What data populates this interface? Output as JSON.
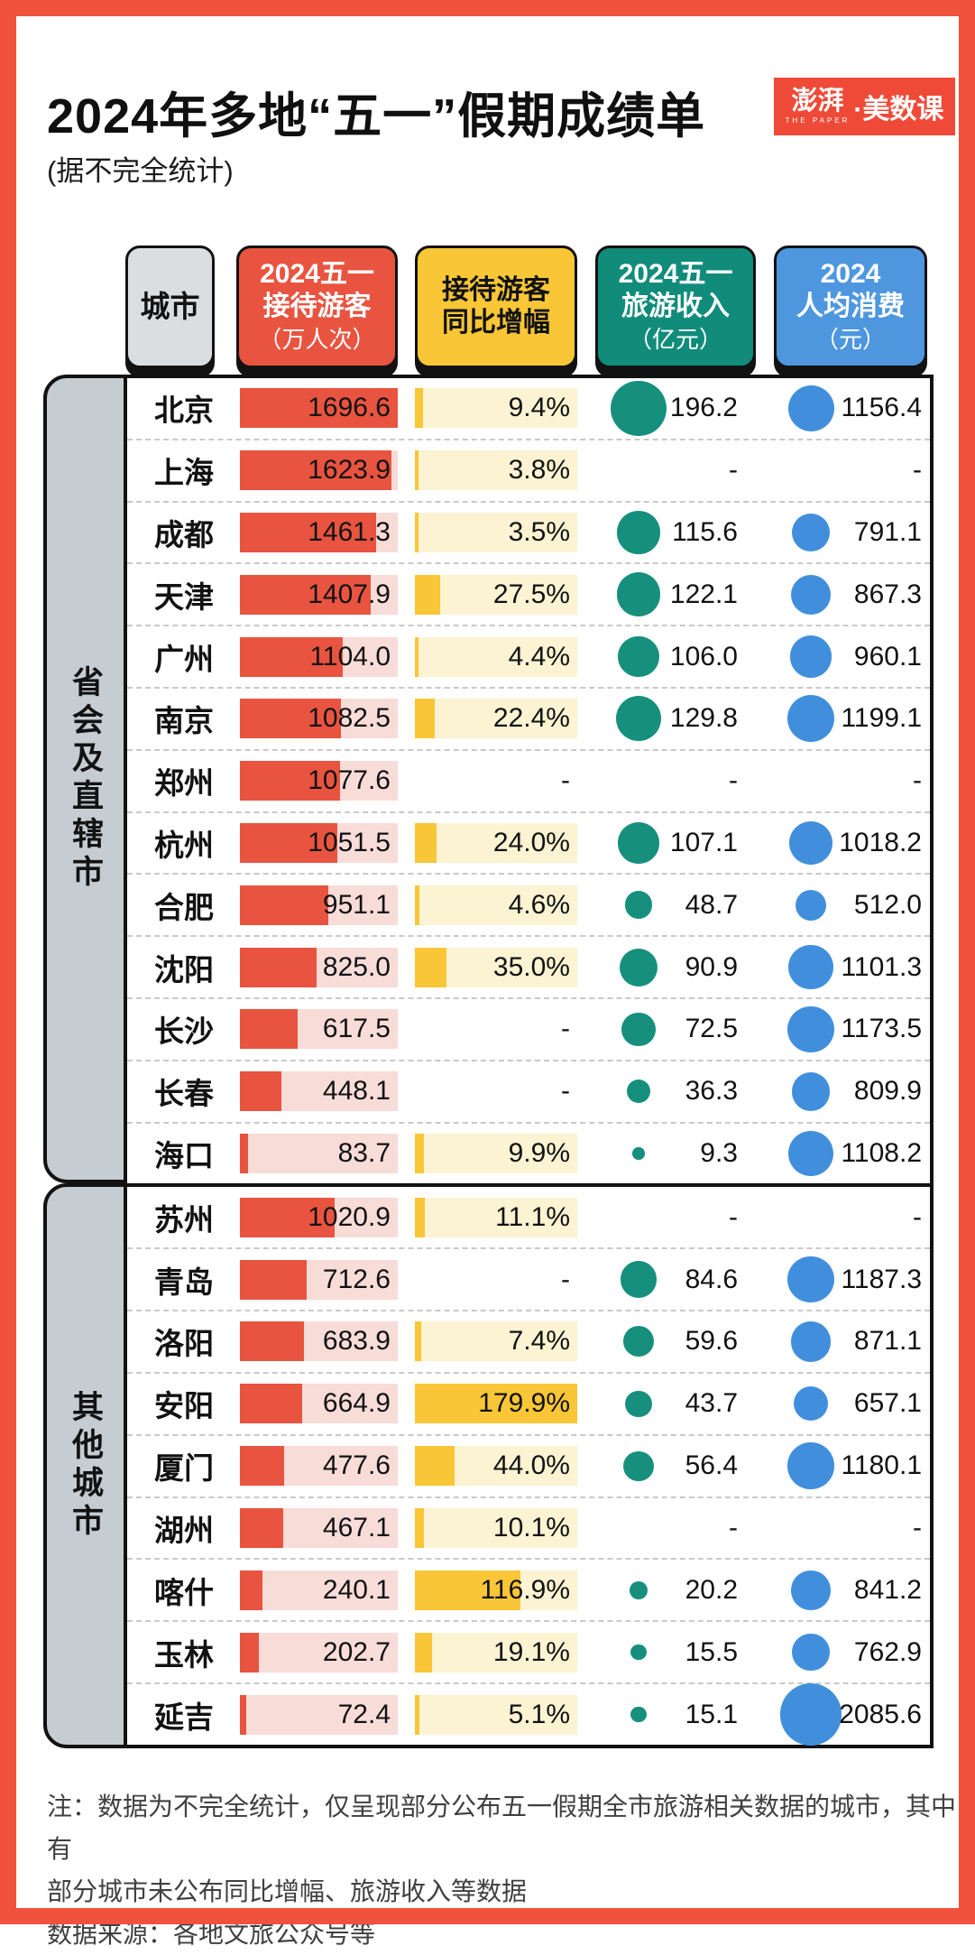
{
  "page": {
    "title": "2024年多地“五一”假期成绩单",
    "subtitle": "(据不完全统计)",
    "frame_color": "#F0523D"
  },
  "logo": {
    "main_text": "澎湃",
    "sub_text": "THE PAPER",
    "right_text": "·美数课",
    "bg_color": "#EF4A38"
  },
  "header": {
    "city": {
      "label": "城市",
      "bg": "#DBDEE1"
    },
    "visitors": {
      "line1": "2024五一",
      "line2": "接待游客",
      "unit": "（万人次）",
      "bg": "#E85440"
    },
    "growth": {
      "line1": "接待游客",
      "line2": "同比增幅",
      "unit": "",
      "bg": "#F8C636"
    },
    "revenue": {
      "line1": "2024五一",
      "line2": "旅游收入",
      "unit": "（亿元）",
      "bg": "#118C7B"
    },
    "spend": {
      "line1": "2024",
      "line2": "人均消费",
      "unit": "（元）",
      "bg": "#4E97DF"
    }
  },
  "colors": {
    "visitors_fill": "#E85440",
    "visitors_track": "#F8DCD8",
    "growth_fill": "#F8C636",
    "growth_track": "#FBF3D2",
    "revenue_dot": "#16907D",
    "spend_dot": "#418FDC",
    "bracket_bg": "#C5CCD2"
  },
  "missing_value_text": "-",
  "chart_data": {
    "type": "table",
    "title": "2024年多地“五一”假期成绩单",
    "subtitle": "(据不完全统计)",
    "columns": [
      "城市",
      "2024五一接待游客（万人次）",
      "接待游客同比增幅",
      "2024五一旅游收入（亿元）",
      "2024人均消费（元）"
    ],
    "encoding": {
      "visitors": "bar",
      "growth_pct": "bar",
      "revenue": "circle-area",
      "spend": "circle-area",
      "visitors_bar_max": 1696.6,
      "growth_bar_max": 179.9
    },
    "groups": [
      {
        "label": "省会及直辖市",
        "rows": [
          {
            "city": "北京",
            "visitors": 1696.6,
            "growth_pct": 9.4,
            "revenue": 196.2,
            "spend": 1156.4
          },
          {
            "city": "上海",
            "visitors": 1623.9,
            "growth_pct": 3.8,
            "revenue": null,
            "spend": null
          },
          {
            "city": "成都",
            "visitors": 1461.3,
            "growth_pct": 3.5,
            "revenue": 115.6,
            "spend": 791.1
          },
          {
            "city": "天津",
            "visitors": 1407.9,
            "growth_pct": 27.5,
            "revenue": 122.1,
            "spend": 867.3
          },
          {
            "city": "广州",
            "visitors": 1104.0,
            "growth_pct": 4.4,
            "revenue": 106.0,
            "spend": 960.1
          },
          {
            "city": "南京",
            "visitors": 1082.5,
            "growth_pct": 22.4,
            "revenue": 129.8,
            "spend": 1199.1
          },
          {
            "city": "郑州",
            "visitors": 1077.6,
            "growth_pct": null,
            "revenue": null,
            "spend": null
          },
          {
            "city": "杭州",
            "visitors": 1051.5,
            "growth_pct": 24.0,
            "revenue": 107.1,
            "spend": 1018.2
          },
          {
            "city": "合肥",
            "visitors": 951.1,
            "growth_pct": 4.6,
            "revenue": 48.7,
            "spend": 512.0
          },
          {
            "city": "沈阳",
            "visitors": 825.0,
            "growth_pct": 35.0,
            "revenue": 90.9,
            "spend": 1101.3
          },
          {
            "city": "长沙",
            "visitors": 617.5,
            "growth_pct": null,
            "revenue": 72.5,
            "spend": 1173.5
          },
          {
            "city": "长春",
            "visitors": 448.1,
            "growth_pct": null,
            "revenue": 36.3,
            "spend": 809.9
          },
          {
            "city": "海口",
            "visitors": 83.7,
            "growth_pct": 9.9,
            "revenue": 9.3,
            "spend": 1108.2
          }
        ]
      },
      {
        "label": "其他城市",
        "rows": [
          {
            "city": "苏州",
            "visitors": 1020.9,
            "growth_pct": 11.1,
            "revenue": null,
            "spend": null
          },
          {
            "city": "青岛",
            "visitors": 712.6,
            "growth_pct": null,
            "revenue": 84.6,
            "spend": 1187.3
          },
          {
            "city": "洛阳",
            "visitors": 683.9,
            "growth_pct": 7.4,
            "revenue": 59.6,
            "spend": 871.1
          },
          {
            "city": "安阳",
            "visitors": 664.9,
            "growth_pct": 179.9,
            "revenue": 43.7,
            "spend": 657.1
          },
          {
            "city": "厦门",
            "visitors": 477.6,
            "growth_pct": 44.0,
            "revenue": 56.4,
            "spend": 1180.1
          },
          {
            "city": "湖州",
            "visitors": 467.1,
            "growth_pct": 10.1,
            "revenue": null,
            "spend": null
          },
          {
            "city": "喀什",
            "visitors": 240.1,
            "growth_pct": 116.9,
            "revenue": 20.2,
            "spend": 841.2
          },
          {
            "city": "玉林",
            "visitors": 202.7,
            "growth_pct": 19.1,
            "revenue": 15.5,
            "spend": 762.9
          },
          {
            "city": "延吉",
            "visitors": 72.4,
            "growth_pct": 5.1,
            "revenue": 15.1,
            "spend": 2085.6
          }
        ]
      }
    ]
  },
  "notes": {
    "lines": [
      "注：数据为不完全统计，仅呈现部分公布五一假期全市旅游相关数据的城市，其中有",
      "部分城市未公布同比增幅、旅游收入等数据",
      "数据来源：各地文旅公众号等"
    ]
  }
}
